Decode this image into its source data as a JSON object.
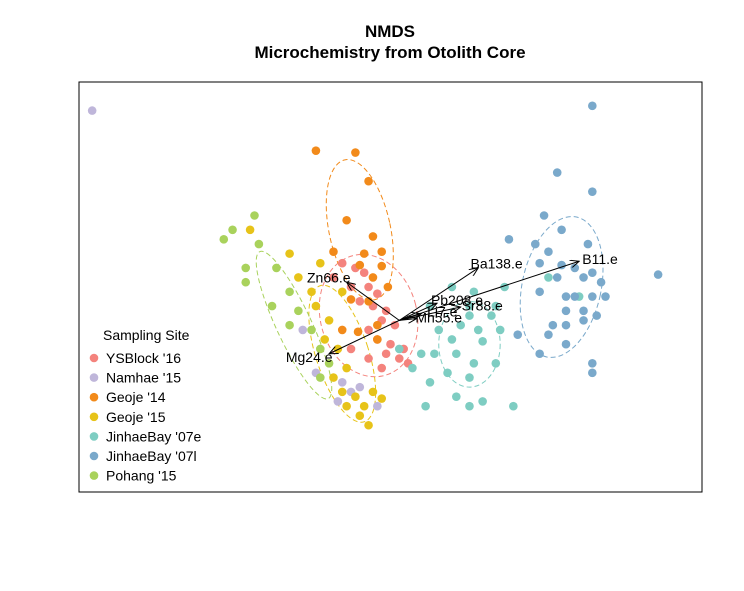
{
  "chart_data": {
    "type": "scatter",
    "title": "NMDS",
    "subtitle": "Microchemistry from Otolith Core",
    "xlabel": "",
    "ylabel": "",
    "xlim": [
      -4.0,
      3.1
    ],
    "ylim": [
      -1.8,
      2.5
    ],
    "grid": false,
    "legend": {
      "title": "Sampling Site",
      "placement": "left"
    },
    "series": [
      {
        "name": "YSBlock '16",
        "color": "#F4837D",
        "points": [
          [
            -1.0,
            0.6
          ],
          [
            -0.85,
            0.55
          ],
          [
            -0.75,
            0.5
          ],
          [
            -1.1,
            0.45
          ],
          [
            -0.9,
            0.35
          ],
          [
            -0.7,
            0.35
          ],
          [
            -0.6,
            0.28
          ],
          [
            -0.8,
            0.2
          ],
          [
            -0.65,
            0.15
          ],
          [
            -0.5,
            0.1
          ],
          [
            -0.55,
            0.0
          ],
          [
            -0.4,
            -0.05
          ],
          [
            -0.7,
            -0.1
          ],
          [
            -0.6,
            -0.2
          ],
          [
            -0.45,
            -0.25
          ],
          [
            -0.3,
            -0.3
          ],
          [
            -0.5,
            -0.35
          ],
          [
            -0.35,
            -0.4
          ],
          [
            -0.25,
            -0.45
          ],
          [
            -0.55,
            -0.5
          ],
          [
            -0.7,
            -0.4
          ],
          [
            -0.9,
            -0.3
          ]
        ],
        "ellipse": {
          "cx": -0.7,
          "cy": 0.05,
          "rx": 0.55,
          "ry": 0.65,
          "angle_deg": -15
        }
      },
      {
        "name": "Namhae '15",
        "color": "#BFB6DA",
        "points": [
          [
            -3.85,
            2.2
          ],
          [
            -1.45,
            -0.1
          ],
          [
            -1.3,
            -0.55
          ],
          [
            -1.0,
            -0.65
          ],
          [
            -0.9,
            -0.75
          ],
          [
            -1.05,
            -0.85
          ],
          [
            -0.8,
            -0.7
          ],
          [
            -0.6,
            -0.9
          ]
        ],
        "ellipse": null
      },
      {
        "name": "Geoje '14",
        "color": "#F28A1A",
        "points": [
          [
            -1.3,
            1.78
          ],
          [
            -0.85,
            1.76
          ],
          [
            -0.7,
            1.46
          ],
          [
            -0.95,
            1.05
          ],
          [
            -0.65,
            0.88
          ],
          [
            -1.1,
            0.72
          ],
          [
            -0.75,
            0.7
          ],
          [
            -0.55,
            0.72
          ],
          [
            -0.8,
            0.58
          ],
          [
            -0.55,
            0.57
          ],
          [
            -0.65,
            0.45
          ],
          [
            -0.48,
            0.35
          ],
          [
            -0.9,
            0.22
          ],
          [
            -0.7,
            0.2
          ],
          [
            -0.6,
            -0.05
          ],
          [
            -0.82,
            -0.12
          ],
          [
            -1.0,
            -0.1
          ],
          [
            -0.6,
            -0.2
          ]
        ],
        "ellipse": {
          "cx": -0.8,
          "cy": 0.95,
          "rx": 0.35,
          "ry": 0.75,
          "angle_deg": -12
        }
      },
      {
        "name": "Geoje '15",
        "color": "#E7C319",
        "points": [
          [
            -2.05,
            0.95
          ],
          [
            -1.6,
            0.7
          ],
          [
            -1.25,
            0.6
          ],
          [
            -1.5,
            0.45
          ],
          [
            -1.35,
            0.3
          ],
          [
            -1.0,
            0.3
          ],
          [
            -1.3,
            0.15
          ],
          [
            -1.15,
            0.0
          ],
          [
            -1.2,
            -0.2
          ],
          [
            -1.05,
            -0.3
          ],
          [
            -0.95,
            -0.5
          ],
          [
            -1.1,
            -0.6
          ],
          [
            -0.85,
            -0.8
          ],
          [
            -0.75,
            -0.9
          ],
          [
            -0.95,
            -0.9
          ],
          [
            -0.65,
            -0.75
          ],
          [
            -0.55,
            -0.82
          ],
          [
            -0.8,
            -1.0
          ],
          [
            -0.7,
            -1.1
          ],
          [
            -1.0,
            -0.75
          ]
        ],
        "ellipse": {
          "cx": -1.0,
          "cy": -0.35,
          "rx": 0.3,
          "ry": 0.75,
          "angle_deg": -18
        }
      },
      {
        "name": "JinhaeBay '07e",
        "color": "#7ECDC2",
        "points": [
          [
            0.85,
            0.35
          ],
          [
            0.25,
            0.35
          ],
          [
            0.5,
            0.3
          ],
          [
            0.45,
            0.15
          ],
          [
            0.0,
            0.15
          ],
          [
            0.75,
            0.15
          ],
          [
            0.45,
            0.05
          ],
          [
            0.7,
            0.05
          ],
          [
            0.35,
            -0.05
          ],
          [
            0.1,
            -0.1
          ],
          [
            0.55,
            -0.1
          ],
          [
            0.8,
            -0.1
          ],
          [
            0.25,
            -0.2
          ],
          [
            0.6,
            -0.22
          ],
          [
            -0.35,
            -0.3
          ],
          [
            -0.1,
            -0.35
          ],
          [
            0.05,
            -0.35
          ],
          [
            0.3,
            -0.35
          ],
          [
            0.5,
            -0.45
          ],
          [
            0.75,
            -0.45
          ],
          [
            -0.2,
            -0.5
          ],
          [
            0.2,
            -0.55
          ],
          [
            0.45,
            -0.6
          ],
          [
            0.0,
            -0.65
          ],
          [
            0.3,
            -0.8
          ],
          [
            0.6,
            -0.85
          ],
          [
            -0.05,
            -0.9
          ],
          [
            0.45,
            -0.9
          ],
          [
            0.95,
            -0.9
          ],
          [
            1.35,
            0.45
          ],
          [
            1.7,
            0.25
          ]
        ],
        "ellipse": {
          "cx": 0.45,
          "cy": -0.25,
          "rx": 0.35,
          "ry": 0.45,
          "angle_deg": 0
        }
      },
      {
        "name": "JinhaeBay '07l",
        "color": "#7AA9CB",
        "points": [
          [
            1.85,
            2.25
          ],
          [
            1.45,
            1.55
          ],
          [
            1.85,
            1.35
          ],
          [
            1.3,
            1.1
          ],
          [
            1.5,
            0.95
          ],
          [
            0.9,
            0.85
          ],
          [
            1.2,
            0.8
          ],
          [
            1.35,
            0.72
          ],
          [
            1.8,
            0.8
          ],
          [
            1.25,
            0.6
          ],
          [
            1.5,
            0.58
          ],
          [
            1.65,
            0.55
          ],
          [
            1.85,
            0.5
          ],
          [
            2.6,
            0.48
          ],
          [
            1.45,
            0.45
          ],
          [
            1.75,
            0.45
          ],
          [
            1.95,
            0.4
          ],
          [
            1.25,
            0.3
          ],
          [
            1.55,
            0.25
          ],
          [
            1.65,
            0.25
          ],
          [
            1.85,
            0.25
          ],
          [
            2.0,
            0.25
          ],
          [
            1.55,
            0.1
          ],
          [
            1.75,
            0.1
          ],
          [
            1.4,
            -0.05
          ],
          [
            1.55,
            -0.05
          ],
          [
            1.75,
            0.0
          ],
          [
            1.9,
            0.05
          ],
          [
            1.0,
            -0.15
          ],
          [
            1.35,
            -0.15
          ],
          [
            1.55,
            -0.25
          ],
          [
            1.25,
            -0.35
          ],
          [
            1.85,
            -0.45
          ],
          [
            1.85,
            -0.55
          ]
        ],
        "ellipse": {
          "cx": 1.5,
          "cy": 0.35,
          "rx": 0.45,
          "ry": 0.75,
          "angle_deg": 12
        }
      },
      {
        "name": "Pohang '15",
        "color": "#A9D25C",
        "points": [
          [
            -2.0,
            1.1
          ],
          [
            -2.25,
            0.95
          ],
          [
            -2.35,
            0.85
          ],
          [
            -1.95,
            0.8
          ],
          [
            -2.1,
            0.55
          ],
          [
            -1.75,
            0.55
          ],
          [
            -2.1,
            0.4
          ],
          [
            -1.6,
            0.3
          ],
          [
            -1.8,
            0.15
          ],
          [
            -1.5,
            0.1
          ],
          [
            -1.35,
            -0.1
          ],
          [
            -1.6,
            -0.05
          ],
          [
            -1.25,
            -0.3
          ],
          [
            -1.15,
            -0.45
          ],
          [
            -1.25,
            -0.6
          ]
        ],
        "ellipse": {
          "cx": -1.55,
          "cy": -0.05,
          "rx": 0.2,
          "ry": 0.85,
          "angle_deg": -25
        }
      }
    ],
    "vectors": [
      {
        "label": "B11.e",
        "x": 1.7,
        "y": 0.62
      },
      {
        "label": "Ba138.e",
        "x": 0.55,
        "y": 0.55
      },
      {
        "label": "Sr88.e",
        "x": 0.35,
        "y": 0.14
      },
      {
        "label": "Pb208.e",
        "x": 0.08,
        "y": 0.18
      },
      {
        "label": "Li7.e",
        "x": -0.1,
        "y": 0.07
      },
      {
        "label": "Mn55.e",
        "x": -0.15,
        "y": 0.02
      },
      {
        "label": "Zn66.e",
        "x": -0.95,
        "y": 0.4
      },
      {
        "label": "Mg24.e",
        "x": -1.15,
        "y": -0.35
      }
    ],
    "vector_origin": [
      -0.35,
      0.0
    ]
  }
}
